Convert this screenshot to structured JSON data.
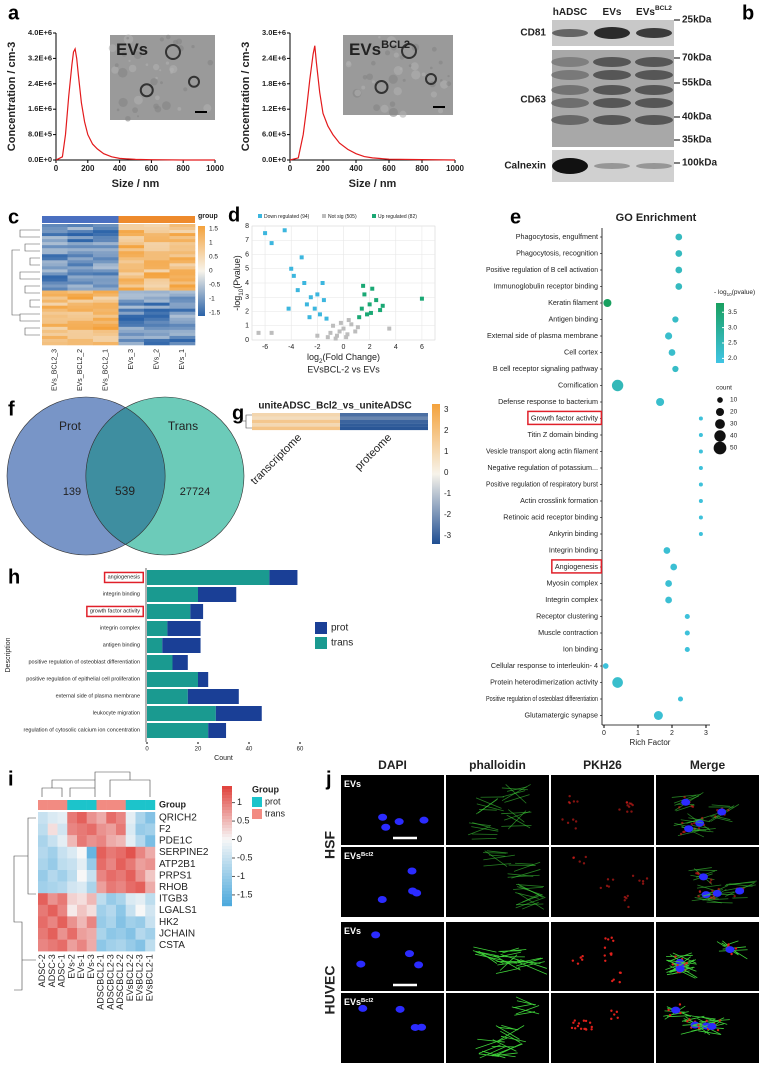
{
  "panel_labels": [
    "a",
    "b",
    "c",
    "d",
    "e",
    "f",
    "g",
    "h",
    "i",
    "j"
  ],
  "chart_data": [
    {
      "type": "line",
      "xlabel": "Size / nm",
      "ylabel": "Concentration / cm-3",
      "inset_label": {
        "base": "EVs"
      },
      "xlim": [
        0,
        1000
      ],
      "xticks": [
        0,
        200,
        400,
        600,
        800,
        1000
      ],
      "ylim": [
        0,
        4000000
      ],
      "yticks": [
        {
          "value": 0,
          "label": "0.0E+0"
        },
        {
          "value": 800000,
          "label": "8.0E+5"
        },
        {
          "value": 1600000,
          "label": "1.6E+6"
        },
        {
          "value": 2400000,
          "label": "2.4E+6"
        },
        {
          "value": 3200000,
          "label": "3.2E+6"
        },
        {
          "value": 4000000,
          "label": "4.0E+6"
        }
      ],
      "series": [
        {
          "color": "#e31a1c",
          "x": [
            0,
            40,
            60,
            80,
            100,
            110,
            120,
            130,
            140,
            160,
            180,
            200,
            230,
            260,
            300,
            350,
            400,
            500,
            600,
            800,
            1000
          ],
          "values": [
            0,
            100000,
            800000,
            2000000,
            3000000,
            3400000,
            3500000,
            3200000,
            2700000,
            1800000,
            1200000,
            800000,
            500000,
            350000,
            200000,
            100000,
            50000,
            20000,
            10000,
            0,
            0
          ]
        }
      ]
    },
    {
      "type": "line",
      "xlabel": "Size / nm",
      "ylabel": "Concentration / cm-3",
      "inset_label": {
        "base": "EVs",
        "sup": "BCL2"
      },
      "xlim": [
        0,
        1000
      ],
      "xticks": [
        0,
        200,
        400,
        600,
        800,
        1000
      ],
      "ylim": [
        0,
        3000000
      ],
      "yticks": [
        {
          "value": 0,
          "label": "0.0E+0"
        },
        {
          "value": 600000,
          "label": "6.0E+5"
        },
        {
          "value": 1200000,
          "label": "1.2E+6"
        },
        {
          "value": 1800000,
          "label": "1.8E+6"
        },
        {
          "value": 2400000,
          "label": "2.4E+6"
        },
        {
          "value": 3000000,
          "label": "3.0E+6"
        }
      ],
      "series": [
        {
          "color": "#e31a1c",
          "x": [
            0,
            50,
            80,
            100,
            120,
            140,
            150,
            160,
            180,
            200,
            230,
            260,
            300,
            350,
            400,
            450,
            500,
            600,
            800,
            1000
          ],
          "values": [
            0,
            50000,
            600000,
            1200000,
            1900000,
            2500000,
            2700000,
            2300000,
            1600000,
            1100000,
            800000,
            600000,
            400000,
            250000,
            150000,
            80000,
            50000,
            20000,
            10000,
            0
          ]
        }
      ]
    },
    {
      "type": "scatter",
      "xlabel": {
        "base": "log",
        "sub": "2",
        "rest": "(Fold Change)"
      },
      "subtitle": "EVsBCL-2 vs EVs",
      "ylabel": {
        "base": "-log",
        "sub": "10",
        "rest": "(Pvalue)"
      },
      "xlim": [
        -7,
        7
      ],
      "xticks": [
        -6,
        -4,
        -2,
        0,
        2,
        4,
        6
      ],
      "ylim": [
        0,
        8
      ],
      "yticks": [
        0,
        1,
        2,
        3,
        4,
        5,
        6,
        7,
        8
      ],
      "grid": true,
      "series": [
        {
          "name": "Down regulated (94)",
          "color": "#3cb6de",
          "x": [
            -6,
            -5.5,
            -4.5,
            -4,
            -3.8,
            -3.5,
            -3,
            -2.8,
            -2.5,
            -2.2,
            -2,
            -1.8,
            -1.5,
            -1.3,
            -3.2,
            -2.6,
            -4.2,
            -1.6
          ],
          "values": [
            7.5,
            6.8,
            7.7,
            5,
            4.5,
            3.5,
            4,
            2.5,
            3,
            2.2,
            3.2,
            1.8,
            2.8,
            1.5,
            5.8,
            1.6,
            2.2,
            4
          ]
        },
        {
          "name": "Not sig (505)",
          "color": "#bdbdbd",
          "x": [
            -1,
            -0.8,
            -0.5,
            -0.2,
            0,
            0.3,
            0.6,
            0.9,
            -1.2,
            1.1,
            -0.6,
            0.4,
            -6.5,
            -5.5,
            0.2,
            -0.3,
            3.5,
            -2
          ],
          "values": [
            0.5,
            1,
            0.3,
            1.2,
            0.8,
            0.4,
            1.1,
            0.6,
            0.2,
            0.9,
            0.1,
            1.4,
            0.5,
            0.5,
            0.2,
            0.6,
            0.8,
            0.3
          ]
        },
        {
          "name": "Up regulated (82)",
          "color": "#1aa874",
          "x": [
            1.2,
            1.4,
            1.6,
            1.8,
            2,
            2.2,
            2.5,
            2.8,
            3,
            1.5,
            2.1,
            6
          ],
          "values": [
            1.6,
            2.2,
            3.2,
            1.8,
            2.5,
            3.6,
            2.8,
            2.1,
            2.4,
            3.8,
            1.9,
            2.9
          ]
        }
      ]
    },
    {
      "type": "dot",
      "title": "GO Enrichment",
      "xlabel": "Rich Factor",
      "xlim": [
        0,
        3
      ],
      "xticks": [
        0,
        1,
        2,
        3
      ],
      "categories": [
        "Phagocytosis, engulfment",
        "Phagocytosis, recognition",
        "Positive regulation of B cell activation",
        "Immunoglobulin receptor binding",
        "Keratin filament",
        "Antigen binding",
        "External side of plasma membrane",
        "Cell cortex",
        "B cell receptor signaling pathway",
        "Cornification",
        "Defense response to bacterium",
        "Growth factor activity",
        "Titin Z domain binding",
        "Vesicle transport along actin filament",
        "Negative regulation of potassium...",
        "Positive regulation of respiratory burst",
        "Actin crosslink formation",
        "Retinoic acid receptor binding",
        "Ankyrin binding",
        "Integrin binding",
        "Angiogenesis",
        "Myosin complex",
        "Integrin complex",
        "Receptor clustering",
        "Muscle contraction",
        "Ion binding",
        "Cellular response to interleukin- 4",
        "Protein heterodimerization activity",
        "Positive regulation of osteoblast differentiation",
        "Glutamatergic synapse"
      ],
      "values": [
        2.2,
        2.2,
        2.2,
        2.2,
        0.1,
        2.1,
        1.9,
        2.0,
        2.1,
        0.4,
        1.65,
        2.85,
        2.85,
        2.85,
        2.85,
        2.85,
        2.85,
        2.85,
        2.85,
        1.85,
        2.05,
        1.9,
        1.9,
        2.45,
        2.45,
        2.45,
        0.05,
        0.4,
        2.25,
        1.6
      ],
      "pvalue": [
        2.4,
        2.4,
        2.4,
        2.4,
        3.8,
        2.3,
        2.2,
        2.2,
        2.3,
        2.5,
        2.2,
        2.0,
        2.0,
        2.0,
        2.0,
        2.0,
        2.0,
        2.0,
        2.0,
        2.1,
        2.1,
        2.1,
        2.1,
        2.0,
        2.0,
        2.0,
        2.0,
        2.2,
        2.0,
        2.1
      ],
      "count": [
        14,
        14,
        14,
        14,
        20,
        12,
        16,
        14,
        12,
        40,
        20,
        5,
        5,
        5,
        5,
        5,
        5,
        5,
        5,
        14,
        14,
        14,
        14,
        8,
        8,
        8,
        10,
        35,
        8,
        25
      ],
      "clim": [
        1.85,
        3.8
      ],
      "colors": [
        "#40c4e4",
        "#19a060"
      ],
      "color_title": {
        "base": "- log",
        "sub": "10",
        "rest": "(pvalue)"
      },
      "color_ticks": [
        3.5,
        {
          "value": 3,
          "label": "3.0"
        },
        2.5,
        {
          "value": 2,
          "label": "2.0"
        }
      ],
      "size_title": "count",
      "size_ticks": [
        10,
        20,
        30,
        40,
        50
      ],
      "highlight_index": [
        11,
        20
      ],
      "highlight_color": "#e0202a"
    },
    {
      "type": "barh_stacked",
      "xlabel": "Count",
      "ylabel": "Description",
      "xlim": [
        0,
        60
      ],
      "xticks": [
        0,
        20,
        40,
        60
      ],
      "categories": [
        "angiogenesis",
        "integrin binding",
        "growth factor activity",
        "integrin complex",
        "antigen binding",
        "positive regulation of osteoblast differentiation",
        "positive regulation of epithelial cell proliferation",
        "external side of plasma membrane",
        "leukocyte migration",
        "regulation of cytosolic calcium ion concentration"
      ],
      "series": [
        {
          "name": "prot",
          "color": "#1a3f96",
          "values": [
            11,
            15,
            5,
            13,
            15,
            6,
            4,
            20,
            18,
            7
          ]
        },
        {
          "name": "trans",
          "color": "#1a9a90",
          "values": [
            48,
            20,
            17,
            8,
            6,
            10,
            20,
            16,
            27,
            24
          ]
        }
      ],
      "highlight_index": [
        0,
        2
      ],
      "highlight_color": "#e0202a"
    },
    {
      "type": "heatmap",
      "annotation_label": "Group",
      "legend_title": "Group",
      "rows": [
        "QRICH2",
        "F2",
        "PDE1C",
        "SERPINE2",
        "ATP2B1",
        "PRPS1",
        "RHOB",
        "ITGB3",
        "LGALS1",
        "HK2",
        "JCHAIN",
        "CSTA"
      ],
      "columns": [
        "ADSC-2",
        "ADSC-3",
        "ADSC-1",
        "EVs-2",
        "EVs-1",
        "EVs-3",
        "ADSCBCL2-1",
        "ADSCBCL2-3",
        "ADSCBCL2-2",
        "EVsBCL2-2",
        "EVsBCL2-3",
        "EVsBCL2-1"
      ],
      "column_group": [
        "trans",
        "trans",
        "trans",
        "prot",
        "prot",
        "prot",
        "trans",
        "trans",
        "trans",
        "prot",
        "prot",
        "prot"
      ],
      "groups": [
        {
          "name": "prot",
          "color": "#1cc4cb"
        },
        {
          "name": "trans",
          "color": "#f28b82"
        }
      ],
      "zlim": [
        -1.8,
        1.45
      ],
      "zticks": [
        1,
        0.5,
        0,
        -0.5,
        -1,
        -1.5
      ],
      "values": [
        [
          -0.5,
          -0.3,
          -0.2,
          1.0,
          1.2,
          0.8,
          0.6,
          1.1,
          0.9,
          -0.2,
          -0.8,
          -1.2
        ],
        [
          -0.6,
          0.2,
          -0.4,
          0.9,
          1.0,
          1.1,
          0.8,
          0.7,
          1.0,
          -0.3,
          -1.0,
          -0.9
        ],
        [
          -0.8,
          -0.5,
          -0.2,
          0.5,
          1.0,
          0.8,
          0.9,
          0.6,
          0.5,
          -0.2,
          -0.7,
          -1.3
        ],
        [
          -0.7,
          -0.9,
          -0.5,
          -0.3,
          0.0,
          -1.5,
          1.2,
          1.0,
          1.1,
          1.3,
          0.9,
          0.6
        ],
        [
          -0.8,
          -1.0,
          -0.6,
          -0.5,
          -0.2,
          -1.0,
          1.1,
          0.9,
          1.2,
          1.0,
          0.7,
          0.8
        ],
        [
          -1.0,
          -0.7,
          -0.9,
          -0.6,
          0.0,
          -0.5,
          0.9,
          1.1,
          1.0,
          1.2,
          0.8,
          0.4
        ],
        [
          -0.9,
          -0.8,
          -0.7,
          -0.4,
          -0.3,
          -0.8,
          0.7,
          1.0,
          0.9,
          1.1,
          1.2,
          0.6
        ],
        [
          1.2,
          0.8,
          1.0,
          0.3,
          0.2,
          0.5,
          -0.6,
          -1.0,
          -0.8,
          -0.3,
          -0.2,
          -0.6
        ],
        [
          1.0,
          1.2,
          0.9,
          0.1,
          0.4,
          0.2,
          -0.9,
          -0.7,
          -1.1,
          -0.5,
          0.0,
          -0.4
        ],
        [
          1.1,
          0.9,
          1.2,
          0.8,
          0.5,
          0.9,
          -1.0,
          -0.8,
          -1.2,
          -0.9,
          -1.0,
          -0.5
        ],
        [
          1.0,
          1.2,
          0.8,
          1.1,
          0.7,
          0.6,
          -0.8,
          -1.1,
          -1.0,
          -1.2,
          -0.7,
          -0.9
        ],
        [
          0.9,
          1.0,
          1.1,
          0.7,
          0.9,
          0.6,
          -1.1,
          -0.9,
          -0.8,
          -1.0,
          -1.2,
          -0.6
        ]
      ]
    }
  ],
  "blot": {
    "columns": [
      {
        "base": "hADSC"
      },
      {
        "base": "EVs"
      },
      {
        "base": "EVs",
        "sup": "BCL2"
      }
    ],
    "markers": [
      "CD81",
      "CD63",
      "Calnexin"
    ],
    "sizes": [
      "25kDa",
      "70kDa",
      "55kDa",
      "40kDa",
      "35kDa",
      "100kDa"
    ]
  },
  "heatmap_c": {
    "legend_title": "group",
    "ticks": [
      "1.5",
      "1",
      "0.5",
      "0",
      "-0.5",
      "-1",
      "-1.5"
    ],
    "columns": [
      "EVs_BCL2_3",
      "EVs_BCL2_2",
      "EVs_BCL2_1",
      "EVs_3",
      "EVs_2",
      "EVs_1"
    ]
  },
  "venn": {
    "left": "Prot",
    "right": "Trans",
    "left_only": "139",
    "both": "539",
    "right_only": "27724"
  },
  "heatmap_g": {
    "title": "uniteADSC_Bcl2_vs_uniteADSC",
    "ticks": [
      "3",
      "2",
      "1",
      "0",
      "-1",
      "-2",
      "-3"
    ],
    "columns": [
      "transcriptome",
      "proteome"
    ]
  },
  "microscopy": {
    "columns": [
      "DAPI",
      "phalloidin",
      "PKH26",
      "Merge"
    ],
    "cell_types": [
      "HSF",
      "HUVEC"
    ],
    "rows": [
      {
        "base": "EVs"
      },
      {
        "base": "EVs",
        "sup": "Bcl2"
      },
      {
        "base": "EVs"
      },
      {
        "base": "EVs",
        "sup": "Bcl2"
      }
    ]
  }
}
